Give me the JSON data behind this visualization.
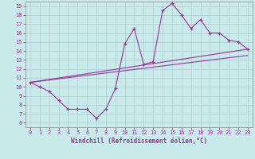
{
  "xlabel": "Windchill (Refroidissement éolien,°C)",
  "bg_color": "#c8eaea",
  "grid_color": "#b0cccc",
  "line_color": "#993399",
  "xlim": [
    -0.5,
    23.5
  ],
  "ylim": [
    5.5,
    19.5
  ],
  "xticks": [
    0,
    1,
    2,
    3,
    4,
    5,
    6,
    7,
    8,
    9,
    10,
    11,
    12,
    13,
    14,
    15,
    16,
    17,
    18,
    19,
    20,
    21,
    22,
    23
  ],
  "yticks": [
    6,
    7,
    8,
    9,
    10,
    11,
    12,
    13,
    14,
    15,
    16,
    17,
    18,
    19
  ],
  "line1_x": [
    0,
    1,
    2,
    3,
    4,
    5,
    6,
    7,
    8,
    9,
    10,
    11,
    12,
    13,
    14,
    15,
    16,
    17,
    18,
    19,
    20,
    21,
    22,
    23
  ],
  "line1_y": [
    10.5,
    10.0,
    9.5,
    8.5,
    7.5,
    7.5,
    7.5,
    6.5,
    7.5,
    9.8,
    14.8,
    16.5,
    12.5,
    12.8,
    18.5,
    19.3,
    18.0,
    16.5,
    17.5,
    16.0,
    16.0,
    15.2,
    15.0,
    14.2
  ],
  "line2_x": [
    0,
    23
  ],
  "line2_y": [
    10.5,
    14.2
  ],
  "line3_x": [
    0,
    23
  ],
  "line3_y": [
    10.5,
    13.5
  ],
  "xlabel_fontsize": 5.5,
  "tick_fontsize": 5.0
}
